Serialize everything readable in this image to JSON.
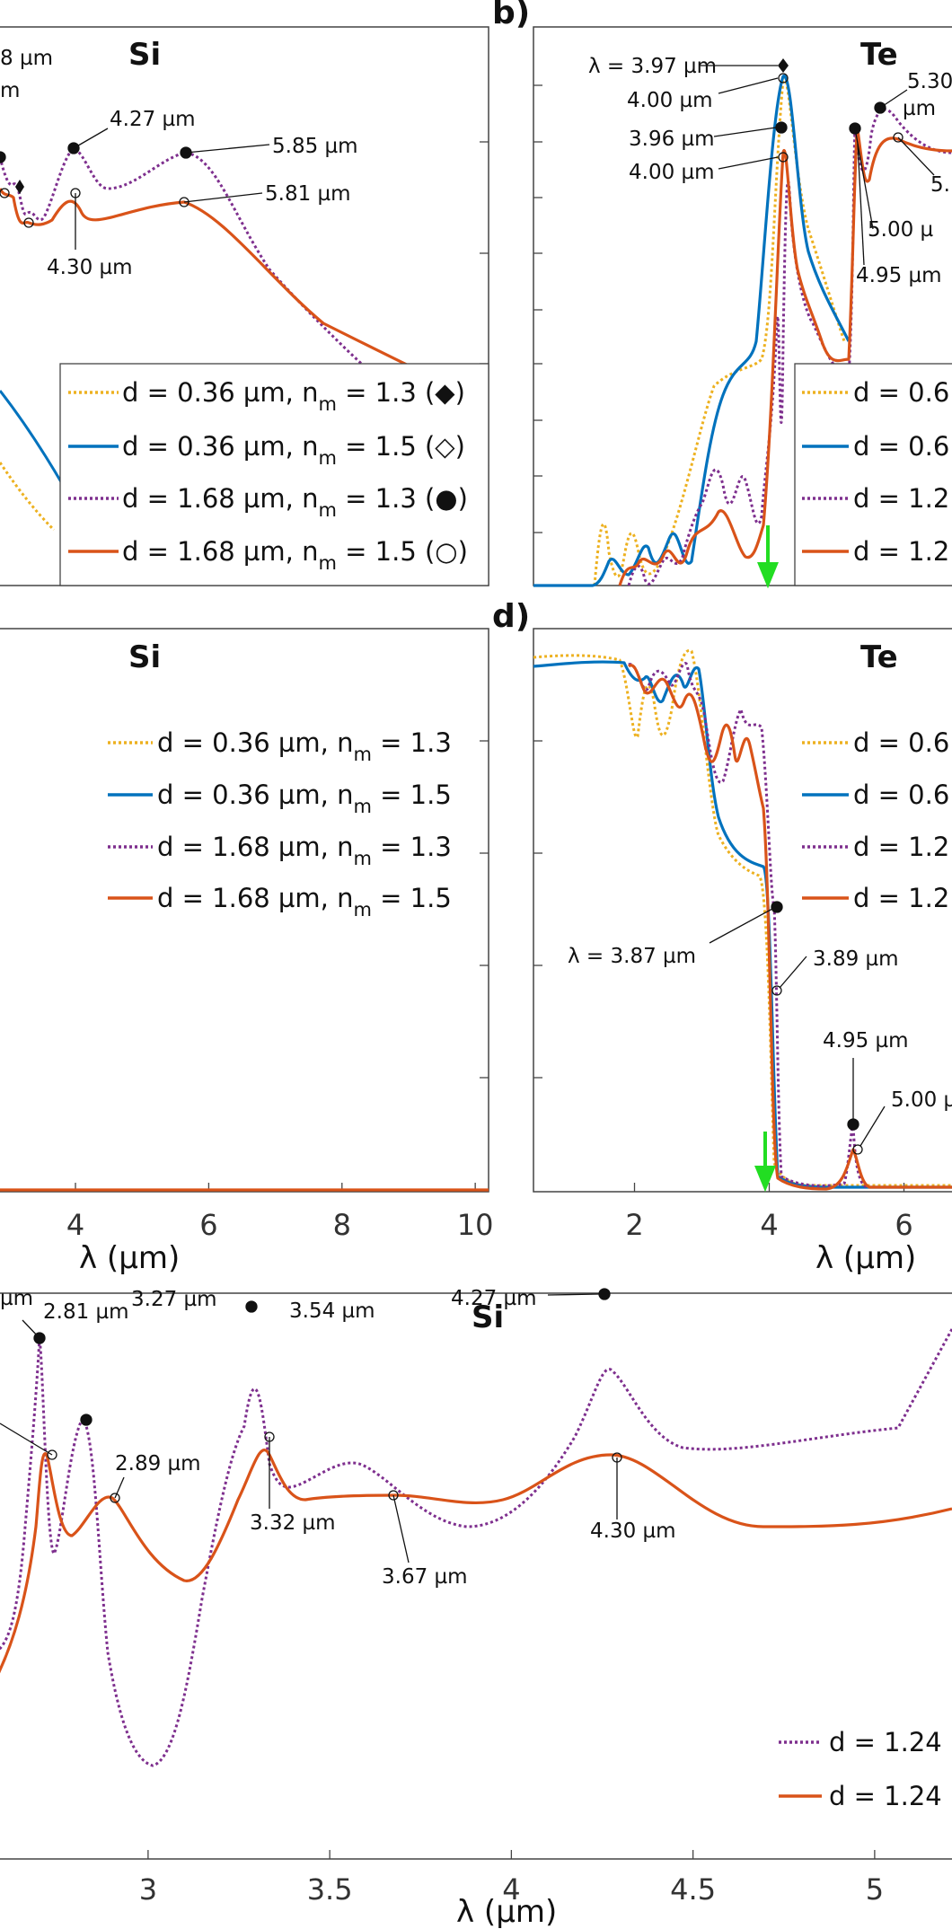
{
  "colors": {
    "yellow": "#EDB120",
    "blue": "#0072BD",
    "purple": "#7E2F8E",
    "orange": "#D95319",
    "green": "#22dd22",
    "axis": "#333333"
  },
  "chart_data": [
    {
      "id": "a-partial",
      "type": "line",
      "title": "Si",
      "x_visible_range": [
        2.8,
        10.2
      ],
      "legend": [
        {
          "text": "d = 0.36 µm, n",
          "sub": "m",
          "tail": " = 1.3 (◆)",
          "style": "yellow-dotted"
        },
        {
          "text": "d = 0.36 µm, n",
          "sub": "m",
          "tail": " = 1.5 (◇)",
          "style": "blue-solid"
        },
        {
          "text": "d = 1.68 µm, n",
          "sub": "m",
          "tail": " = 1.3 (●)",
          "style": "purple-dotted"
        },
        {
          "text": "d = 1.68 µm, n",
          "sub": "m",
          "tail": " = 1.5 (○)",
          "style": "orange-solid"
        }
      ],
      "annotations": [
        "8 µm",
        "m",
        "4.27 µm",
        "5.85 µm",
        "5.81 µm",
        "4.30 µm"
      ]
    },
    {
      "id": "b",
      "panel_label": "b)",
      "type": "line",
      "title": "Te",
      "x_visible_range": [
        0.5,
        6.9
      ],
      "annotations": [
        "λ = 3.97 µm",
        "4.00 µm",
        "3.96 µm",
        "4.00 µm",
        "5.30",
        "µm",
        "5.",
        "5.00 µ",
        "4.95 µm"
      ],
      "legend": [
        "d = 0.6",
        "d = 0.6",
        "d = 1.2",
        "d = 1.2"
      ]
    },
    {
      "id": "c-partial",
      "type": "line",
      "title": "Si",
      "xlabel": "λ (µm)",
      "xticks": [
        "4",
        "6",
        "8",
        "10"
      ],
      "x_visible_range": [
        2.8,
        10.2
      ],
      "legend": [
        {
          "text": "d = 0.36 µm, n",
          "sub": "m",
          "tail": " = 1.3",
          "style": "yellow-dotted"
        },
        {
          "text": "d = 0.36 µm, n",
          "sub": "m",
          "tail": " = 1.5",
          "style": "blue-solid"
        },
        {
          "text": "d = 1.68 µm, n",
          "sub": "m",
          "tail": " = 1.3",
          "style": "purple-dotted"
        },
        {
          "text": "d = 1.68 µm, n",
          "sub": "m",
          "tail": " = 1.5",
          "style": "orange-solid"
        }
      ]
    },
    {
      "id": "d",
      "panel_label": "d)",
      "type": "line",
      "title": "Te",
      "xlabel": "λ (µm)",
      "xticks": [
        "2",
        "4",
        "6"
      ],
      "x_visible_range": [
        0.5,
        6.9
      ],
      "annotations": [
        "λ = 3.87 µm",
        "3.89 µm",
        "4.95 µm",
        "5.00 µ"
      ],
      "legend": [
        "d = 0.6",
        "d = 0.6",
        "d = 1.2",
        "d = 1.2"
      ]
    },
    {
      "id": "e-partial",
      "type": "line",
      "title": "Si",
      "xlabel": "λ (µm)",
      "xticks": [
        "3",
        "3.5",
        "4",
        "4.5",
        "5"
      ],
      "x_visible_range": [
        2.58,
        5.25
      ],
      "annotations": [
        "µm",
        "2.81 µm",
        "3.27 µm",
        "3.54 µm",
        "4.27 µm",
        "2.89 µm",
        "3.32 µm",
        "3.67 µm",
        "4.30 µm"
      ],
      "legend": [
        "d = 1.24",
        "d = 1.24"
      ]
    }
  ]
}
